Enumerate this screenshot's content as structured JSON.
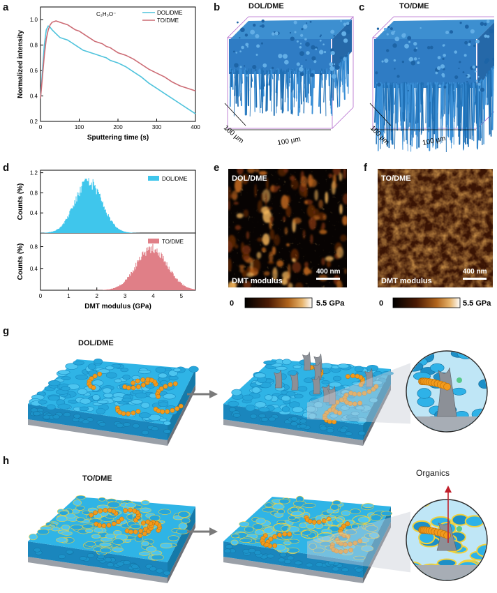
{
  "panels": {
    "a": {
      "label": "a",
      "annotation": "C₂H₃O⁻",
      "chart_data": {
        "type": "line",
        "xlabel": "Sputtering time (s)",
        "ylabel": "Normalized intensity",
        "xlim": [
          0,
          400
        ],
        "ylim": [
          0.2,
          1.1
        ],
        "xticks": [
          0,
          100,
          200,
          300,
          400
        ],
        "yticks": [
          0.2,
          0.4,
          0.6,
          0.8,
          1.0
        ],
        "legend_position": "top-right",
        "series": [
          {
            "name": "DOL/DME",
            "color": "#4fc3dc",
            "x": [
              0,
              5,
              10,
              15,
              20,
              25,
              30,
              40,
              50,
              60,
              70,
              80,
              90,
              100,
              110,
              120,
              130,
              140,
              150,
              160,
              170,
              180,
              190,
              200,
              220,
              240,
              260,
              280,
              300,
              320,
              340,
              360,
              380,
              400
            ],
            "y": [
              0.38,
              0.6,
              0.8,
              0.92,
              0.95,
              0.94,
              0.92,
              0.89,
              0.86,
              0.85,
              0.84,
              0.82,
              0.8,
              0.78,
              0.76,
              0.75,
              0.74,
              0.73,
              0.72,
              0.71,
              0.7,
              0.68,
              0.67,
              0.66,
              0.63,
              0.59,
              0.55,
              0.5,
              0.46,
              0.42,
              0.38,
              0.34,
              0.3,
              0.26
            ]
          },
          {
            "name": "TO/DME",
            "color": "#cc6b74",
            "x": [
              0,
              5,
              10,
              15,
              20,
              25,
              30,
              40,
              50,
              60,
              70,
              80,
              90,
              100,
              110,
              120,
              130,
              140,
              150,
              160,
              170,
              180,
              190,
              200,
              220,
              240,
              260,
              280,
              300,
              320,
              340,
              360,
              380,
              400
            ],
            "y": [
              0.38,
              0.55,
              0.72,
              0.85,
              0.92,
              0.96,
              0.98,
              0.99,
              0.98,
              0.97,
              0.96,
              0.94,
              0.92,
              0.91,
              0.89,
              0.87,
              0.85,
              0.83,
              0.82,
              0.81,
              0.79,
              0.78,
              0.76,
              0.74,
              0.72,
              0.69,
              0.65,
              0.61,
              0.58,
              0.55,
              0.51,
              0.48,
              0.46,
              0.44
            ]
          }
        ]
      }
    },
    "b": {
      "label": "b",
      "title": "DOL/DME",
      "dim_depth": "100 μm",
      "dim_width": "100 μm"
    },
    "c": {
      "label": "c",
      "title": "TO/DME",
      "dim_depth": "100 μm",
      "dim_width": "100 μm"
    },
    "d": {
      "label": "d",
      "chart_data": {
        "type": "bar",
        "xlabel": "DMT modulus (GPa)",
        "ylabel": "Counts (%)",
        "xlim": [
          0,
          5.5
        ],
        "xticks": [
          0,
          1,
          2,
          3,
          4,
          5
        ],
        "yticks_top": [
          0.4,
          0.8,
          1.2
        ],
        "yticks_bottom": [
          0.4,
          0.8
        ],
        "legend_position": "top-right",
        "series": [
          {
            "name": "DOL/DME",
            "color": "#3fc6ec",
            "mean": 1.7,
            "sigma": 0.48,
            "peak": 1.02
          },
          {
            "name": "TO/DME",
            "color": "#e07f87",
            "mean": 3.95,
            "sigma": 0.55,
            "peak": 0.76
          }
        ]
      }
    },
    "e": {
      "label": "e",
      "title": "DOL/DME",
      "caption": "DMT modulus",
      "scalebar": "400 nm",
      "colorbar_min": "0",
      "colorbar_max": "5.5 GPa"
    },
    "f": {
      "label": "f",
      "title": "TO/DME",
      "caption": "DMT modulus",
      "scalebar": "400 nm",
      "colorbar_min": "0",
      "colorbar_max": "5.5 GPa"
    },
    "g": {
      "label": "g",
      "title": "DOL/DME"
    },
    "h": {
      "label": "h",
      "title": "TO/DME",
      "annotation": "Organics"
    }
  },
  "colors": {
    "grain_blue": "#2fb4e6",
    "grain_blue_dark": "#1a86bd",
    "substrate": "#9aa0a8",
    "substrate_dark": "#6d7178",
    "organic_orange": "#f29a1c",
    "dendrite_gray": "#8c9097",
    "sei_yellow": "#f2d13a",
    "arrow_gray": "#7a7a7a",
    "afm_dark": "#1a0c04",
    "afm_bright": "#e08a2a"
  },
  "icons": [
    "right-arrow-icon",
    "up-arrow-icon"
  ]
}
